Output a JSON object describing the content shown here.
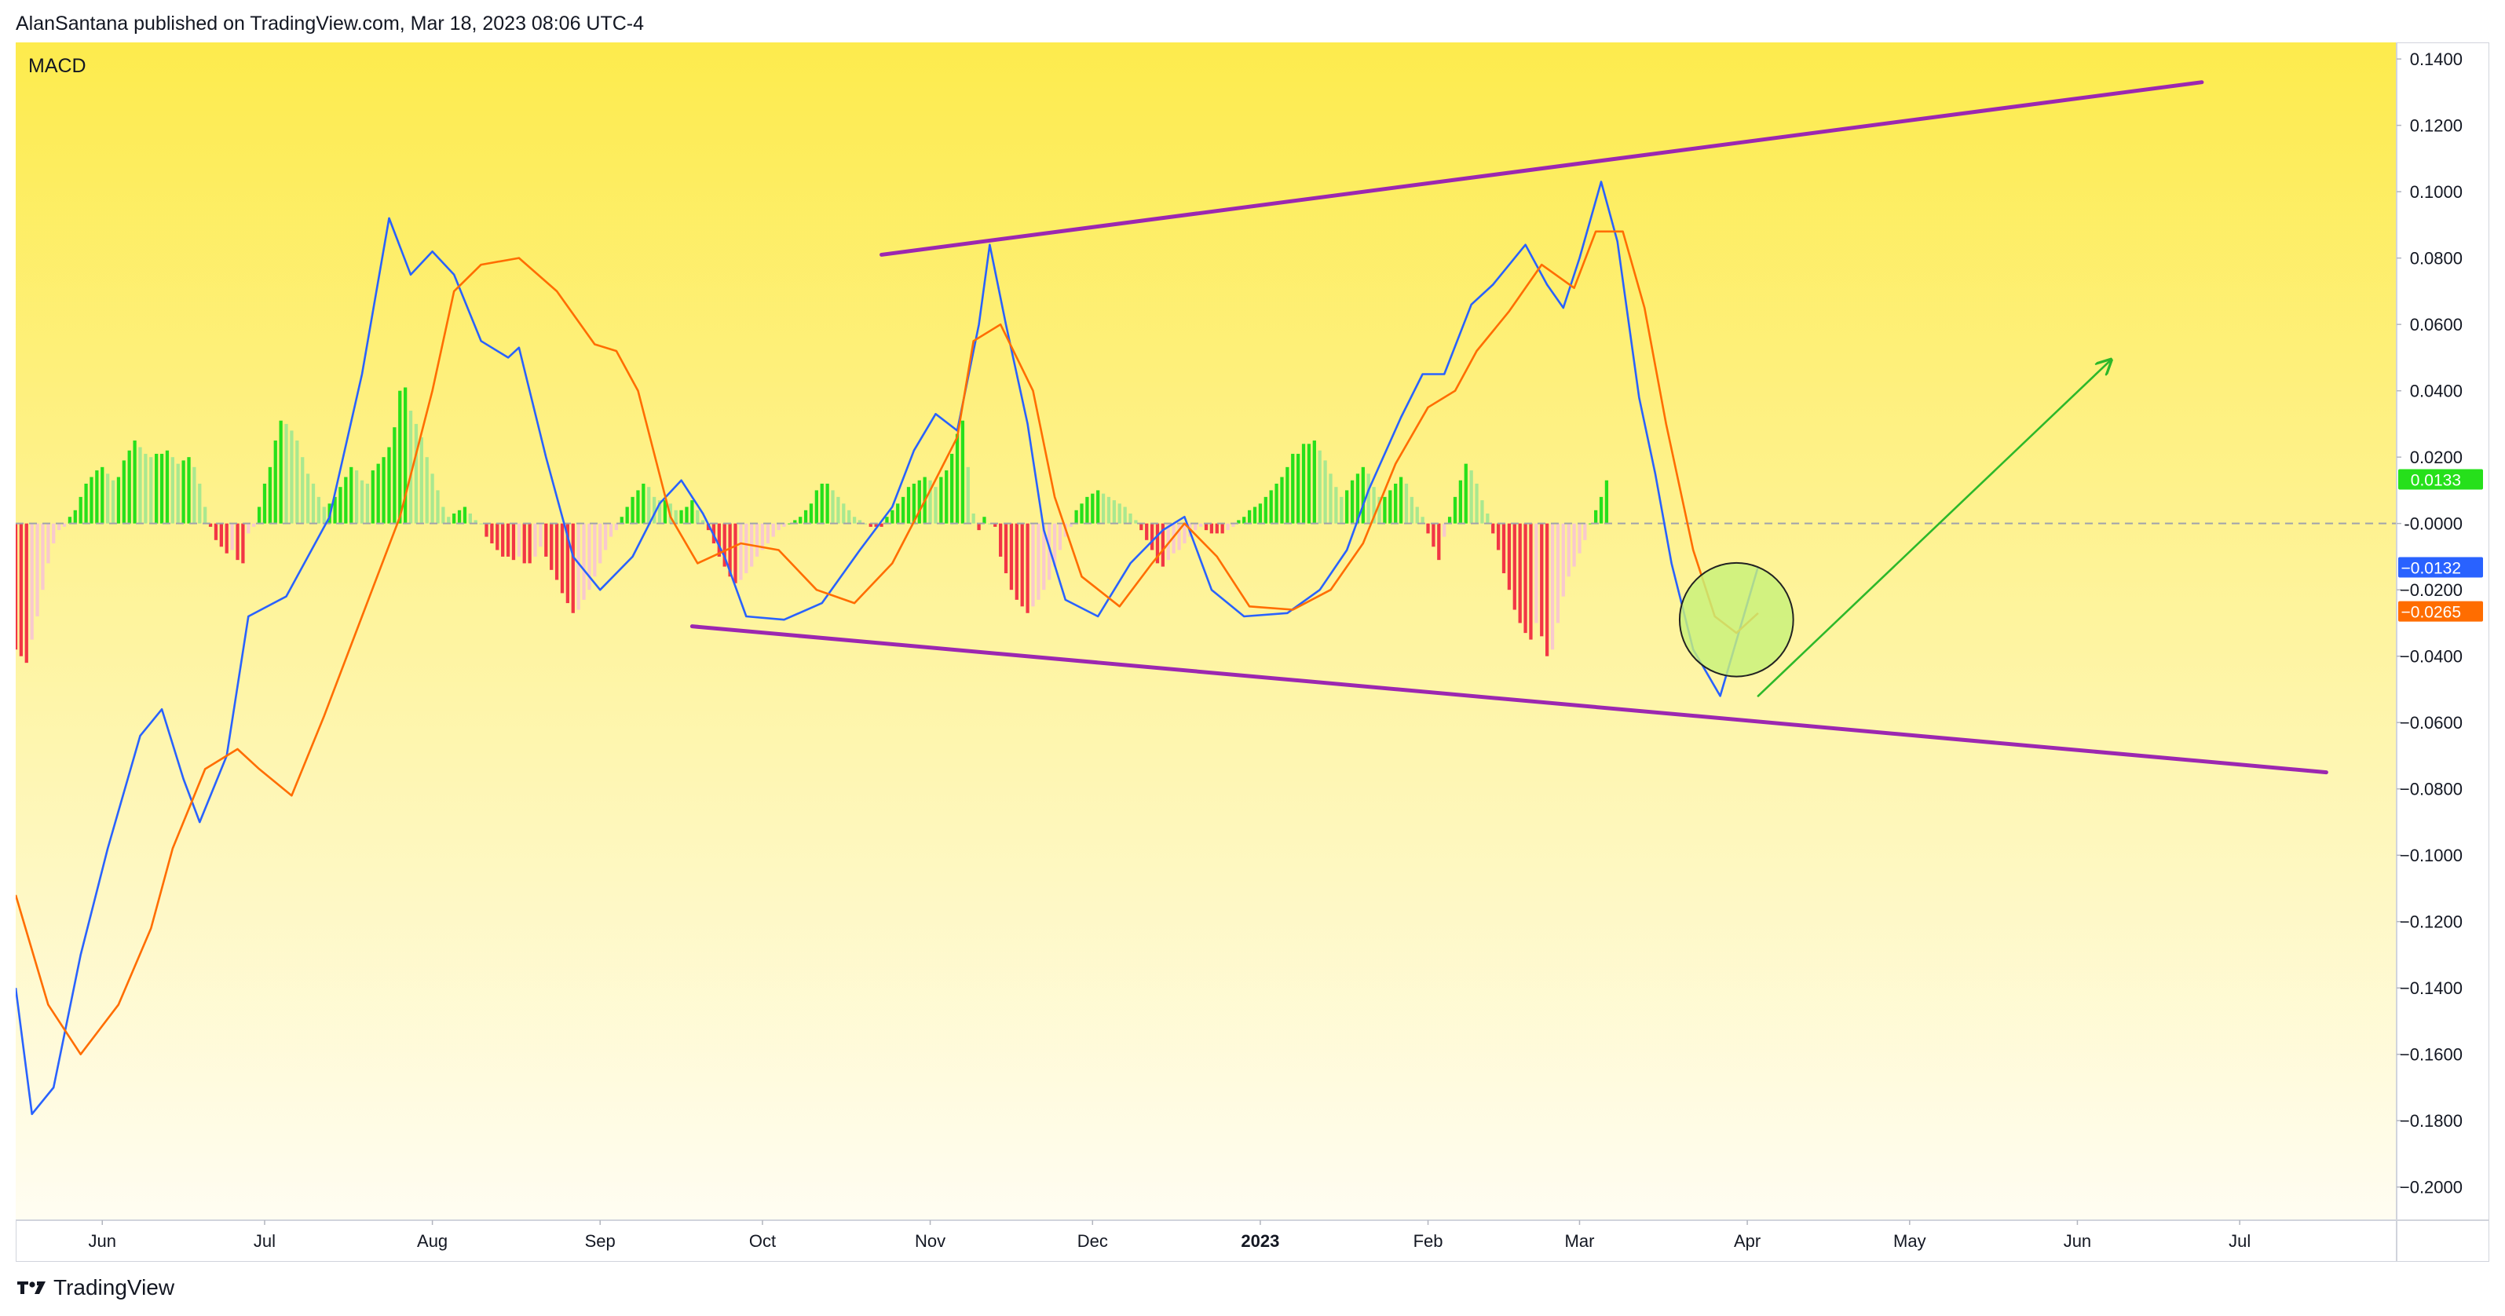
{
  "header": {
    "publish_line": "AlanSantana published on TradingView.com, Mar 18, 2023 08:06 UTC-4"
  },
  "indicator": {
    "name": "MACD"
  },
  "footer": {
    "brand": "TradingView",
    "logo_icon": "tradingview-logo-icon"
  },
  "colors": {
    "background_top": "#fdeb4d",
    "background_bottom": "#fffdf2",
    "macd_line": "#2962ff",
    "signal_line": "#ff6d00",
    "hist_up_strong": "#26e01b",
    "hist_up_weak": "#a9e88f",
    "hist_down_strong": "#f23645",
    "hist_down_weak": "#f8c9ce",
    "trendline": "#9c27b0",
    "projection_arrow": "#2db82a",
    "circle_fill": "#c8f17a"
  },
  "chart_data": {
    "type": "line",
    "title": "MACD",
    "ylim": [
      -0.21,
      0.145
    ],
    "y_ticks": [
      "0.1400",
      "0.1200",
      "0.1000",
      "0.0800",
      "0.0600",
      "0.0400",
      "0.0200",
      "-0.0000",
      "−0.0200",
      "−0.0400",
      "−0.0600",
      "−0.0800",
      "−0.1000",
      "−0.1200",
      "−0.1400",
      "−0.1600",
      "−0.1800",
      "−0.2000"
    ],
    "x_range": [
      "2022-05-16",
      "2023-07-30"
    ],
    "x_ticks": [
      {
        "label": "Jun",
        "date": "2022-06-01"
      },
      {
        "label": "Jul",
        "date": "2022-07-01"
      },
      {
        "label": "Aug",
        "date": "2022-08-01"
      },
      {
        "label": "Sep",
        "date": "2022-09-01"
      },
      {
        "label": "Oct",
        "date": "2022-10-01"
      },
      {
        "label": "Nov",
        "date": "2022-11-01"
      },
      {
        "label": "Dec",
        "date": "2022-12-01"
      },
      {
        "label": "2023",
        "date": "2023-01-01",
        "bold": true
      },
      {
        "label": "Feb",
        "date": "2023-02-01"
      },
      {
        "label": "Mar",
        "date": "2023-03-01"
      },
      {
        "label": "Apr",
        "date": "2023-04-01"
      },
      {
        "label": "May",
        "date": "2023-05-01"
      },
      {
        "label": "Jun",
        "date": "2023-06-01"
      },
      {
        "label": "Jul",
        "date": "2023-07-01"
      }
    ],
    "zero_line": 0,
    "series": [
      {
        "role": "macd",
        "color": "#2962ff",
        "points": [
          [
            "2022-05-16",
            -0.14
          ],
          [
            "2022-05-19",
            -0.178
          ],
          [
            "2022-05-23",
            -0.17
          ],
          [
            "2022-05-28",
            -0.13
          ],
          [
            "2022-06-02",
            -0.098
          ],
          [
            "2022-06-08",
            -0.064
          ],
          [
            "2022-06-12",
            -0.056
          ],
          [
            "2022-06-16",
            -0.077
          ],
          [
            "2022-06-19",
            -0.09
          ],
          [
            "2022-06-24",
            -0.07
          ],
          [
            "2022-06-28",
            -0.028
          ],
          [
            "2022-07-05",
            -0.022
          ],
          [
            "2022-07-13",
            0.002
          ],
          [
            "2022-07-19",
            0.045
          ],
          [
            "2022-07-24",
            0.092
          ],
          [
            "2022-07-28",
            0.075
          ],
          [
            "2022-08-01",
            0.082
          ],
          [
            "2022-08-05",
            0.075
          ],
          [
            "2022-08-10",
            0.055
          ],
          [
            "2022-08-15",
            0.05
          ],
          [
            "2022-08-17",
            0.053
          ],
          [
            "2022-08-22",
            0.02
          ],
          [
            "2022-08-27",
            -0.01
          ],
          [
            "2022-09-01",
            -0.02
          ],
          [
            "2022-09-07",
            -0.01
          ],
          [
            "2022-09-12",
            0.006
          ],
          [
            "2022-09-16",
            0.013
          ],
          [
            "2022-09-20",
            0.003
          ],
          [
            "2022-09-24",
            -0.01
          ],
          [
            "2022-09-28",
            -0.028
          ],
          [
            "2022-10-05",
            -0.029
          ],
          [
            "2022-10-12",
            -0.024
          ],
          [
            "2022-10-19",
            -0.008
          ],
          [
            "2022-10-25",
            0.005
          ],
          [
            "2022-10-29",
            0.022
          ],
          [
            "2022-11-02",
            0.033
          ],
          [
            "2022-11-06",
            0.028
          ],
          [
            "2022-11-10",
            0.06
          ],
          [
            "2022-11-12",
            0.084
          ],
          [
            "2022-11-15",
            0.06
          ],
          [
            "2022-11-19",
            0.03
          ],
          [
            "2022-11-22",
            -0.002
          ],
          [
            "2022-11-26",
            -0.023
          ],
          [
            "2022-12-02",
            -0.028
          ],
          [
            "2022-12-08",
            -0.012
          ],
          [
            "2022-12-14",
            -0.002
          ],
          [
            "2022-12-18",
            0.002
          ],
          [
            "2022-12-23",
            -0.02
          ],
          [
            "2022-12-29",
            -0.028
          ],
          [
            "2023-01-06",
            -0.027
          ],
          [
            "2023-01-12",
            -0.02
          ],
          [
            "2023-01-17",
            -0.008
          ],
          [
            "2023-01-21",
            0.01
          ],
          [
            "2023-01-27",
            0.032
          ],
          [
            "2023-01-31",
            0.045
          ],
          [
            "2023-02-04",
            0.045
          ],
          [
            "2023-02-09",
            0.066
          ],
          [
            "2023-02-13",
            0.072
          ],
          [
            "2023-02-16",
            0.078
          ],
          [
            "2023-02-19",
            0.084
          ],
          [
            "2023-02-23",
            0.072
          ],
          [
            "2023-02-26",
            0.065
          ],
          [
            "2023-03-01",
            0.08
          ],
          [
            "2023-03-05",
            0.103
          ],
          [
            "2023-03-08",
            0.085
          ],
          [
            "2023-03-12",
            0.038
          ],
          [
            "2023-03-15",
            0.015
          ],
          [
            "2023-03-18",
            -0.012
          ],
          [
            "2023-03-22",
            -0.038
          ],
          [
            "2023-03-27",
            -0.052
          ],
          [
            "2023-04-03",
            -0.013
          ]
        ]
      },
      {
        "role": "signal",
        "color": "#ff6d00",
        "points": [
          [
            "2022-05-16",
            -0.112
          ],
          [
            "2022-05-22",
            -0.145
          ],
          [
            "2022-05-28",
            -0.16
          ],
          [
            "2022-06-04",
            -0.145
          ],
          [
            "2022-06-10",
            -0.122
          ],
          [
            "2022-06-14",
            -0.098
          ],
          [
            "2022-06-20",
            -0.074
          ],
          [
            "2022-06-26",
            -0.068
          ],
          [
            "2022-06-30",
            -0.074
          ],
          [
            "2022-07-06",
            -0.082
          ],
          [
            "2022-07-12",
            -0.058
          ],
          [
            "2022-07-19",
            -0.028
          ],
          [
            "2022-07-26",
            0.002
          ],
          [
            "2022-08-01",
            0.04
          ],
          [
            "2022-08-05",
            0.07
          ],
          [
            "2022-08-10",
            0.078
          ],
          [
            "2022-08-17",
            0.08
          ],
          [
            "2022-08-24",
            0.07
          ],
          [
            "2022-08-31",
            0.054
          ],
          [
            "2022-09-04",
            0.052
          ],
          [
            "2022-09-08",
            0.04
          ],
          [
            "2022-09-14",
            0.002
          ],
          [
            "2022-09-19",
            -0.012
          ],
          [
            "2022-09-27",
            -0.006
          ],
          [
            "2022-10-04",
            -0.008
          ],
          [
            "2022-10-11",
            -0.02
          ],
          [
            "2022-10-18",
            -0.024
          ],
          [
            "2022-10-25",
            -0.012
          ],
          [
            "2022-11-01",
            0.01
          ],
          [
            "2022-11-06",
            0.026
          ],
          [
            "2022-11-09",
            0.055
          ],
          [
            "2022-11-14",
            0.06
          ],
          [
            "2022-11-20",
            0.04
          ],
          [
            "2022-11-24",
            0.008
          ],
          [
            "2022-11-29",
            -0.016
          ],
          [
            "2022-12-06",
            -0.025
          ],
          [
            "2022-12-12",
            -0.012
          ],
          [
            "2022-12-18",
            0.0
          ],
          [
            "2022-12-24",
            -0.01
          ],
          [
            "2022-12-30",
            -0.025
          ],
          [
            "2023-01-07",
            -0.026
          ],
          [
            "2023-01-14",
            -0.02
          ],
          [
            "2023-01-20",
            -0.006
          ],
          [
            "2023-01-26",
            0.018
          ],
          [
            "2023-02-01",
            0.035
          ],
          [
            "2023-02-06",
            0.04
          ],
          [
            "2023-02-10",
            0.052
          ],
          [
            "2023-02-16",
            0.064
          ],
          [
            "2023-02-22",
            0.078
          ],
          [
            "2023-02-28",
            0.071
          ],
          [
            "2023-03-04",
            0.088
          ],
          [
            "2023-03-09",
            0.088
          ],
          [
            "2023-03-13",
            0.065
          ],
          [
            "2023-03-17",
            0.03
          ],
          [
            "2023-03-22",
            -0.008
          ],
          [
            "2023-03-26",
            -0.028
          ],
          [
            "2023-03-30",
            -0.033
          ],
          [
            "2023-04-03",
            -0.027
          ]
        ]
      }
    ],
    "histogram": {
      "start": "2022-05-16",
      "step_days": 1,
      "values": [
        -0.038,
        -0.04,
        -0.042,
        -0.035,
        -0.028,
        -0.02,
        -0.012,
        -0.006,
        -0.002,
        -0.001,
        0.002,
        0.004,
        0.008,
        0.012,
        0.014,
        0.016,
        0.017,
        0.015,
        0.013,
        0.014,
        0.019,
        0.022,
        0.025,
        0.023,
        0.021,
        0.02,
        0.021,
        0.021,
        0.022,
        0.02,
        0.018,
        0.019,
        0.02,
        0.017,
        0.012,
        0.005,
        -0.001,
        -0.005,
        -0.007,
        -0.009,
        -0.008,
        -0.011,
        -0.012,
        -0.003,
        -0.001,
        0.005,
        0.012,
        0.017,
        0.025,
        0.031,
        0.03,
        0.028,
        0.025,
        0.02,
        0.015,
        0.012,
        0.008,
        0.005,
        0.006,
        0.008,
        0.011,
        0.014,
        0.017,
        0.016,
        0.013,
        0.012,
        0.016,
        0.018,
        0.02,
        0.023,
        0.029,
        0.04,
        0.041,
        0.034,
        0.03,
        0.026,
        0.02,
        0.015,
        0.01,
        0.005,
        0.002,
        0.003,
        0.004,
        0.005,
        0.003,
        0.001,
        0.0,
        -0.004,
        -0.006,
        -0.008,
        -0.01,
        -0.01,
        -0.011,
        -0.01,
        -0.012,
        -0.012,
        -0.01,
        -0.007,
        -0.01,
        -0.014,
        -0.017,
        -0.021,
        -0.024,
        -0.027,
        -0.026,
        -0.023,
        -0.02,
        -0.016,
        -0.012,
        -0.008,
        -0.004,
        -0.002,
        0.002,
        0.005,
        0.008,
        0.01,
        0.012,
        0.011,
        0.008,
        0.007,
        0.007,
        0.006,
        0.004,
        0.004,
        0.005,
        0.007,
        0.004,
        0.001,
        -0.002,
        -0.006,
        -0.01,
        -0.013,
        -0.016,
        -0.018,
        -0.017,
        -0.015,
        -0.013,
        -0.01,
        -0.008,
        -0.006,
        -0.004,
        -0.002,
        -0.001,
        0.0,
        0.001,
        0.002,
        0.004,
        0.006,
        0.01,
        0.012,
        0.012,
        0.01,
        0.008,
        0.006,
        0.004,
        0.002,
        0.001,
        0.0,
        -0.001,
        -0.001,
        -0.001,
        0.002,
        0.004,
        0.006,
        0.008,
        0.011,
        0.012,
        0.013,
        0.014,
        0.013,
        0.011,
        0.014,
        0.016,
        0.021,
        0.027,
        0.031,
        0.017,
        0.003,
        -0.002,
        0.002,
        0.0,
        -0.001,
        -0.01,
        -0.015,
        -0.02,
        -0.023,
        -0.025,
        -0.027,
        -0.025,
        -0.023,
        -0.02,
        -0.017,
        -0.013,
        -0.008,
        -0.004,
        -0.001,
        0.004,
        0.006,
        0.008,
        0.009,
        0.01,
        0.009,
        0.008,
        0.007,
        0.006,
        0.005,
        0.003,
        0.001,
        -0.002,
        -0.005,
        -0.008,
        -0.012,
        -0.013,
        -0.011,
        -0.009,
        -0.008,
        -0.006,
        -0.004,
        -0.002,
        -0.001,
        -0.002,
        -0.003,
        -0.003,
        -0.003,
        -0.002,
        -0.001,
        0.001,
        0.002,
        0.004,
        0.005,
        0.006,
        0.008,
        0.01,
        0.012,
        0.014,
        0.017,
        0.021,
        0.021,
        0.024,
        0.024,
        0.025,
        0.022,
        0.019,
        0.015,
        0.011,
        0.008,
        0.01,
        0.013,
        0.015,
        0.017,
        0.015,
        0.011,
        0.008,
        0.008,
        0.01,
        0.012,
        0.014,
        0.012,
        0.008,
        0.005,
        0.002,
        -0.003,
        -0.007,
        -0.011,
        -0.004,
        0.002,
        0.008,
        0.013,
        0.018,
        0.016,
        0.012,
        0.007,
        0.003,
        -0.003,
        -0.008,
        -0.015,
        -0.02,
        -0.026,
        -0.03,
        -0.033,
        -0.035,
        -0.03,
        -0.034,
        -0.04,
        -0.038,
        -0.03,
        -0.022,
        -0.016,
        -0.013,
        -0.009,
        -0.005,
        0.0,
        0.004,
        0.008,
        0.013
      ]
    },
    "annotations": {
      "upper_trendline": {
        "from": [
          "2022-10-23",
          0.081
        ],
        "to": [
          "2023-06-24",
          0.133
        ]
      },
      "lower_trendline": {
        "from": [
          "2022-09-18",
          -0.031
        ],
        "to": [
          "2023-07-17",
          -0.075
        ]
      },
      "projection_arrow": {
        "from": [
          "2023-04-03",
          -0.052
        ],
        "to": [
          "2023-06-07",
          0.049
        ]
      },
      "highlight_circle": {
        "center": [
          "2023-03-30",
          -0.029
        ],
        "radius_days": 10.5
      },
      "value_badges": [
        {
          "value": 0.0133,
          "text": "0.0133",
          "color": "#26e01b"
        },
        {
          "value": -0.0132,
          "text": "−0.0132",
          "color": "#2962ff"
        },
        {
          "value": -0.0265,
          "text": "−0.0265",
          "color": "#ff6d00"
        }
      ]
    }
  }
}
